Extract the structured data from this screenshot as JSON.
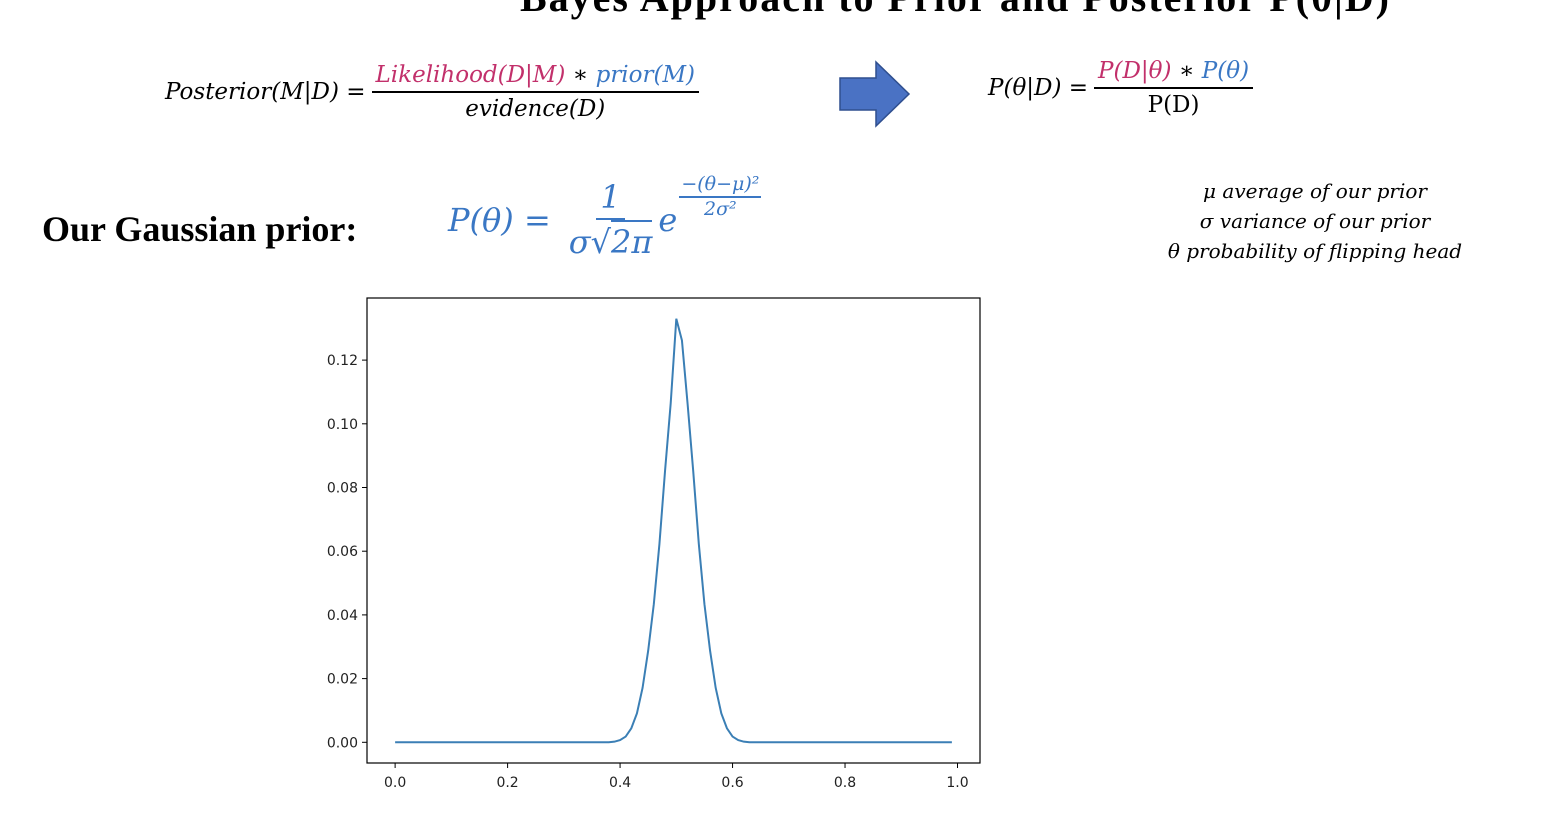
{
  "header": {
    "title": "Bayes Approach to Prior and Posterior P(θ|D)"
  },
  "bayes": {
    "lhs": "Posterior(M|D) =",
    "likelihood": "Likelihood(D|M)",
    "times": " ∗ ",
    "prior": "prior(M)",
    "evidence": "evidence(D)",
    "rhs_lhs": "P(θ|D) =",
    "rhs_likelihood": "P(D|θ)",
    "rhs_times": " ∗ ",
    "rhs_prior": "P(θ)",
    "rhs_den": "P(D)"
  },
  "prior_section": {
    "label": "Our Gaussian prior:",
    "formula_lhs": "P(θ) =",
    "numerator": "1",
    "den_sigma": "σ",
    "den_sqrt": "√",
    "den_radicand": "2π",
    "e": "e",
    "exp_num": "−(θ−μ)²",
    "exp_den": "2σ²"
  },
  "notes": {
    "line1": "μ average of our prior",
    "line2": "σ variance of our prior",
    "line3": "θ probability of flipping head"
  },
  "colors": {
    "likelihood": "#c2306b",
    "prior": "#3a77c4",
    "line": "#3b7fb5",
    "arrow": "#4a72c4"
  },
  "chart_data": {
    "type": "line",
    "title": "",
    "xlabel": "",
    "ylabel": "",
    "xlim": [
      -0.05,
      1.04
    ],
    "ylim": [
      -0.0065,
      0.1395
    ],
    "xticks": [
      "0.0",
      "0.2",
      "0.4",
      "0.6",
      "0.8",
      "1.0"
    ],
    "yticks": [
      "0.00",
      "0.02",
      "0.04",
      "0.06",
      "0.08",
      "0.10",
      "0.12"
    ],
    "grid": false,
    "legend": "none",
    "series": [
      {
        "x": [
          0.0,
          0.01,
          0.02,
          0.03,
          0.04,
          0.05,
          0.06,
          0.07,
          0.08,
          0.09,
          0.1,
          0.11,
          0.12,
          0.13,
          0.14,
          0.15,
          0.16,
          0.17,
          0.18,
          0.19,
          0.2,
          0.21,
          0.22,
          0.23,
          0.24,
          0.25,
          0.26,
          0.27,
          0.28,
          0.29,
          0.3,
          0.31,
          0.32,
          0.33,
          0.34,
          0.35,
          0.36,
          0.37,
          0.38,
          0.39,
          0.4,
          0.41,
          0.42,
          0.43,
          0.44,
          0.45,
          0.46,
          0.47,
          0.48,
          0.49,
          0.5,
          0.51,
          0.52,
          0.53,
          0.54,
          0.55,
          0.56,
          0.57,
          0.58,
          0.59,
          0.6,
          0.61,
          0.62,
          0.63,
          0.64,
          0.65,
          0.66,
          0.67,
          0.68,
          0.69,
          0.7,
          0.71,
          0.72,
          0.73,
          0.74,
          0.75,
          0.76,
          0.77,
          0.78,
          0.79,
          0.8,
          0.81,
          0.82,
          0.83,
          0.84,
          0.85,
          0.86,
          0.87,
          0.88,
          0.89,
          0.9,
          0.91,
          0.92,
          0.93,
          0.94,
          0.95,
          0.96,
          0.97,
          0.98,
          0.99
        ],
        "y": [
          0,
          0,
          0,
          0,
          0,
          0,
          0,
          0,
          0,
          0,
          0,
          0,
          0,
          0,
          0,
          0,
          0,
          0,
          0,
          0,
          0,
          0,
          0,
          0,
          0,
          0,
          0,
          0,
          0,
          0,
          0,
          0,
          0,
          0,
          0,
          0,
          0,
          0,
          0,
          0.0002,
          0.0007,
          0.0018,
          0.0044,
          0.0091,
          0.0171,
          0.0288,
          0.0434,
          0.0623,
          0.0853,
          0.1064,
          0.133,
          0.1262,
          0.1064,
          0.0853,
          0.0623,
          0.0434,
          0.0288,
          0.0171,
          0.0091,
          0.0044,
          0.0018,
          0.0007,
          0.0002,
          0,
          0,
          0,
          0,
          0,
          0,
          0,
          0,
          0,
          0,
          0,
          0,
          0,
          0,
          0,
          0,
          0,
          0,
          0,
          0,
          0,
          0,
          0,
          0,
          0,
          0,
          0,
          0,
          0,
          0,
          0,
          0,
          0,
          0,
          0,
          0,
          0
        ]
      }
    ]
  }
}
